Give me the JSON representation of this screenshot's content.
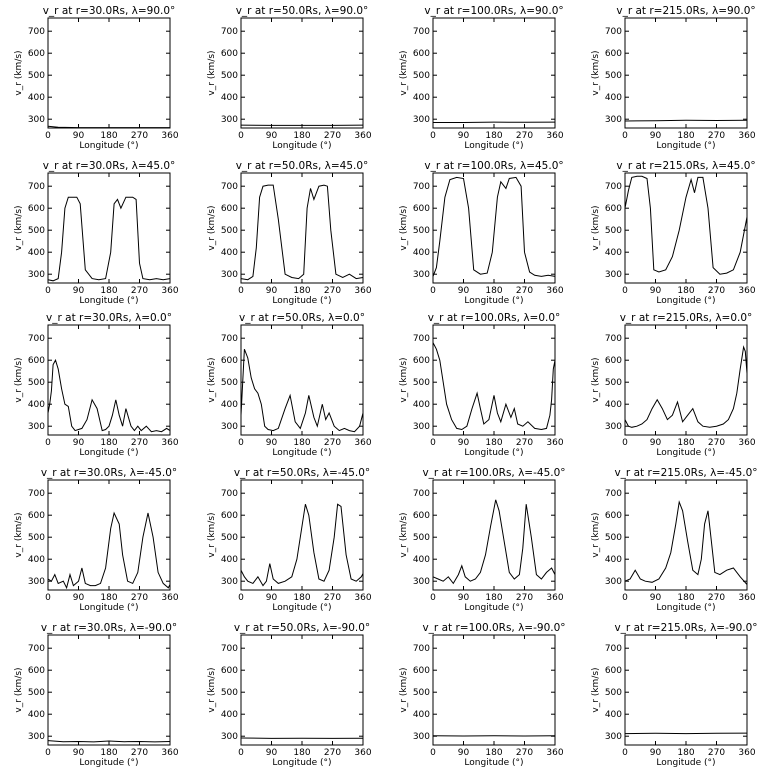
{
  "chart_data": {
    "type": "line",
    "xlabel": "Longitude (°)",
    "ylabel": "v_r (km/s)",
    "xlim": [
      0,
      360
    ],
    "ylim": [
      260,
      760
    ],
    "xticks": [
      0,
      90,
      180,
      270,
      360
    ],
    "yticks": [
      300,
      400,
      500,
      600,
      700
    ],
    "grid": false,
    "rows": [
      {
        "lat_label": "90.0",
        "panels": [
          {
            "title": "v_r at r=30.0Rs, λ=90.0°",
            "x": [
              0,
              30,
              90,
              180,
              270,
              360
            ],
            "y": [
              268,
              263,
              262,
              262,
              262,
              262
            ]
          },
          {
            "title": "v_r at r=50.0Rs, λ=90.0°",
            "x": [
              0,
              90,
              180,
              270,
              360
            ],
            "y": [
              273,
              272,
              272,
              272,
              273
            ]
          },
          {
            "title": "v_r at r=100.0Rs, λ=90.0°",
            "x": [
              0,
              90,
              180,
              270,
              360
            ],
            "y": [
              285,
              285,
              287,
              286,
              287
            ]
          },
          {
            "title": "v_r at r=215.0Rs, λ=90.0°",
            "x": [
              0,
              90,
              180,
              270,
              360
            ],
            "y": [
              292,
              293,
              295,
              294,
              295
            ]
          }
        ]
      },
      {
        "lat_label": "45.0",
        "panels": [
          {
            "title": "v_r at r=30.0Rs, λ=45.0°",
            "x": [
              0,
              15,
              30,
              40,
              50,
              60,
              75,
              85,
              95,
              110,
              130,
              150,
              170,
              185,
              195,
              205,
              215,
              230,
              250,
              260,
              270,
              280,
              300,
              320,
              340,
              360
            ],
            "y": [
              275,
              270,
              280,
              400,
              600,
              650,
              650,
              650,
              620,
              320,
              280,
              275,
              280,
              400,
              620,
              640,
              600,
              650,
              650,
              640,
              350,
              280,
              275,
              280,
              275,
              280
            ]
          },
          {
            "title": "v_r at r=50.0Rs, λ=45.0°",
            "x": [
              0,
              20,
              35,
              45,
              55,
              65,
              80,
              95,
              110,
              130,
              150,
              170,
              185,
              195,
              205,
              215,
              230,
              245,
              255,
              265,
              280,
              300,
              320,
              340,
              360
            ],
            "y": [
              280,
              275,
              290,
              420,
              650,
              700,
              705,
              705,
              550,
              300,
              285,
              280,
              300,
              600,
              690,
              640,
              700,
              705,
              700,
              500,
              300,
              285,
              300,
              280,
              285
            ]
          },
          {
            "title": "v_r at r=100.0Rs, λ=45.0°",
            "x": [
              0,
              10,
              20,
              35,
              50,
              70,
              90,
              105,
              120,
              140,
              160,
              175,
              190,
              200,
              215,
              225,
              245,
              260,
              270,
              285,
              300,
              320,
              340,
              360
            ],
            "y": [
              290,
              330,
              450,
              650,
              730,
              740,
              735,
              600,
              320,
              300,
              305,
              400,
              650,
              720,
              690,
              735,
              740,
              700,
              400,
              310,
              295,
              290,
              295,
              290
            ]
          },
          {
            "title": "v_r at r=215.0Rs, λ=45.0°",
            "x": [
              0,
              10,
              20,
              35,
              50,
              65,
              75,
              85,
              100,
              120,
              140,
              160,
              180,
              195,
              205,
              215,
              230,
              245,
              260,
              280,
              300,
              320,
              340,
              360
            ],
            "y": [
              600,
              680,
              740,
              745,
              745,
              735,
              600,
              320,
              310,
              320,
              380,
              500,
              650,
              730,
              670,
              740,
              740,
              600,
              330,
              300,
              305,
              320,
              400,
              560
            ]
          }
        ]
      },
      {
        "lat_label": "0.0",
        "panels": [
          {
            "title": "v_r at r=30.0Rs, λ=0.0°",
            "x": [
              0,
              5,
              10,
              15,
              22,
              30,
              40,
              50,
              60,
              70,
              80,
              90,
              100,
              115,
              130,
              145,
              160,
              170,
              180,
              190,
              200,
              210,
              220,
              230,
              245,
              255,
              265,
              275,
              290,
              305,
              320,
              335,
              350,
              360
            ],
            "y": [
              360,
              400,
              460,
              580,
              600,
              560,
              470,
              400,
              390,
              300,
              280,
              285,
              290,
              330,
              420,
              380,
              280,
              285,
              300,
              350,
              420,
              350,
              300,
              380,
              300,
              280,
              300,
              280,
              300,
              275,
              280,
              275,
              290,
              280
            ]
          },
          {
            "title": "v_r at r=50.0Rs, λ=0.0°",
            "x": [
              0,
              5,
              10,
              20,
              30,
              40,
              50,
              60,
              70,
              80,
              95,
              110,
              130,
              145,
              160,
              175,
              190,
              200,
              215,
              225,
              240,
              250,
              260,
              275,
              290,
              305,
              320,
              335,
              350,
              360
            ],
            "y": [
              350,
              500,
              650,
              610,
              520,
              470,
              450,
              400,
              300,
              285,
              280,
              290,
              380,
              440,
              320,
              290,
              360,
              440,
              340,
              300,
              400,
              330,
              360,
              300,
              280,
              290,
              280,
              275,
              300,
              360
            ]
          },
          {
            "title": "v_r at r=100.0Rs, λ=0.0°",
            "x": [
              0,
              10,
              20,
              30,
              40,
              55,
              70,
              85,
              100,
              115,
              130,
              140,
              150,
              165,
              180,
              190,
              200,
              215,
              230,
              240,
              250,
              265,
              280,
              300,
              320,
              335,
              345,
              350,
              355,
              360
            ],
            "y": [
              680,
              650,
              600,
              500,
              400,
              330,
              290,
              285,
              300,
              380,
              450,
              380,
              310,
              330,
              440,
              360,
              320,
              400,
              340,
              380,
              310,
              300,
              320,
              290,
              285,
              290,
              350,
              420,
              560,
              600
            ]
          },
          {
            "title": "v_r at r=215.0Rs, λ=0.0°",
            "x": [
              0,
              10,
              20,
              35,
              50,
              65,
              80,
              95,
              110,
              125,
              140,
              155,
              170,
              185,
              200,
              215,
              230,
              250,
              270,
              290,
              305,
              320,
              330,
              340,
              350,
              355,
              360
            ],
            "y": [
              330,
              300,
              295,
              300,
              310,
              330,
              380,
              420,
              380,
              330,
              350,
              410,
              320,
              350,
              380,
              320,
              300,
              295,
              300,
              310,
              330,
              380,
              450,
              560,
              660,
              640,
              540
            ]
          }
        ]
      },
      {
        "lat_label": "-45.0",
        "panels": [
          {
            "title": "v_r at r=30.0Rs, λ=-45.0°",
            "x": [
              0,
              10,
              20,
              30,
              45,
              55,
              65,
              75,
              90,
              100,
              110,
              125,
              140,
              155,
              170,
              185,
              195,
              210,
              220,
              235,
              250,
              265,
              280,
              295,
              310,
              325,
              340,
              355,
              360
            ],
            "y": [
              310,
              300,
              330,
              290,
              300,
              270,
              330,
              280,
              300,
              360,
              290,
              280,
              280,
              290,
              360,
              540,
              610,
              560,
              420,
              300,
              290,
              340,
              500,
              610,
              500,
              340,
              290,
              270,
              285
            ]
          },
          {
            "title": "v_r at r=50.0Rs, λ=-45.0°",
            "x": [
              0,
              10,
              20,
              35,
              50,
              65,
              75,
              85,
              95,
              110,
              130,
              150,
              165,
              180,
              190,
              200,
              215,
              230,
              245,
              260,
              275,
              285,
              295,
              310,
              325,
              340,
              355,
              360
            ],
            "y": [
              350,
              320,
              300,
              290,
              320,
              280,
              300,
              380,
              310,
              290,
              300,
              320,
              400,
              550,
              650,
              600,
              430,
              310,
              300,
              350,
              500,
              650,
              640,
              420,
              310,
              300,
              320,
              335
            ]
          },
          {
            "title": "v_r at r=100.0Rs, λ=-45.0°",
            "x": [
              0,
              15,
              30,
              45,
              60,
              75,
              85,
              95,
              110,
              125,
              140,
              155,
              170,
              185,
              195,
              210,
              225,
              240,
              255,
              265,
              275,
              290,
              305,
              320,
              335,
              350,
              360
            ],
            "y": [
              320,
              310,
              300,
              320,
              290,
              330,
              370,
              320,
              300,
              310,
              340,
              420,
              550,
              670,
              620,
              480,
              340,
              310,
              330,
              450,
              650,
              500,
              330,
              310,
              340,
              360,
              330
            ]
          },
          {
            "title": "v_r at r=215.0Rs, λ=-45.0°",
            "x": [
              0,
              15,
              30,
              45,
              60,
              80,
              100,
              120,
              135,
              150,
              160,
              170,
              185,
              200,
              215,
              225,
              235,
              245,
              255,
              265,
              280,
              300,
              320,
              340,
              360
            ],
            "y": [
              300,
              310,
              350,
              310,
              300,
              295,
              310,
              360,
              430,
              560,
              660,
              620,
              480,
              350,
              330,
              400,
              560,
              620,
              480,
              340,
              330,
              350,
              360,
              320,
              285
            ]
          }
        ]
      },
      {
        "lat_label": "-90.0",
        "panels": [
          {
            "title": "v_r at r=30.0Rs, λ=-90.0°",
            "x": [
              0,
              45,
              90,
              135,
              180,
              225,
              270,
              315,
              360
            ],
            "y": [
              280,
              275,
              276,
              274,
              278,
              275,
              276,
              274,
              276
            ]
          },
          {
            "title": "v_r at r=50.0Rs, λ=-90.0°",
            "x": [
              0,
              90,
              180,
              270,
              360
            ],
            "y": [
              292,
              290,
              291,
              290,
              291
            ]
          },
          {
            "title": "v_r at r=100.0Rs, λ=-90.0°",
            "x": [
              0,
              90,
              180,
              270,
              360
            ],
            "y": [
              302,
              301,
              302,
              301,
              302
            ]
          },
          {
            "title": "v_r at r=215.0Rs, λ=-90.0°",
            "x": [
              0,
              90,
              180,
              270,
              360
            ],
            "y": [
              312,
              313,
              312,
              313,
              314
            ]
          }
        ]
      }
    ]
  }
}
